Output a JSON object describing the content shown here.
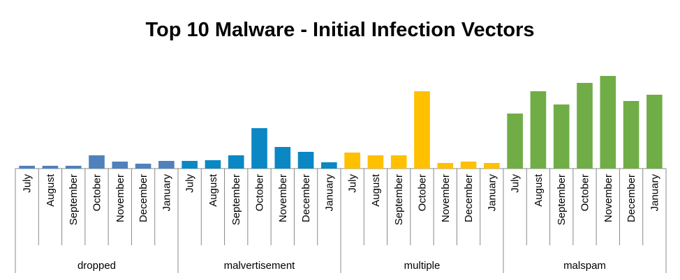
{
  "chart_data": {
    "type": "bar",
    "title": "Top 10 Malware - Initial Infection Vectors",
    "categories": [
      "July",
      "August",
      "September",
      "October",
      "November",
      "December",
      "January"
    ],
    "series": [
      {
        "name": "dropped",
        "color": "#4f81bd",
        "values": [
          4,
          4,
          4,
          19,
          10,
          7,
          11
        ]
      },
      {
        "name": "malvertisement",
        "color": "#0b87c4",
        "values": [
          11,
          12,
          19,
          58,
          31,
          24,
          9
        ]
      },
      {
        "name": "multiple",
        "color": "#ffc000",
        "values": [
          23,
          19,
          19,
          111,
          8,
          10,
          8
        ]
      },
      {
        "name": "malspam",
        "color": "#70ad47",
        "values": [
          79,
          111,
          92,
          123,
          133,
          97,
          106
        ]
      }
    ]
  }
}
